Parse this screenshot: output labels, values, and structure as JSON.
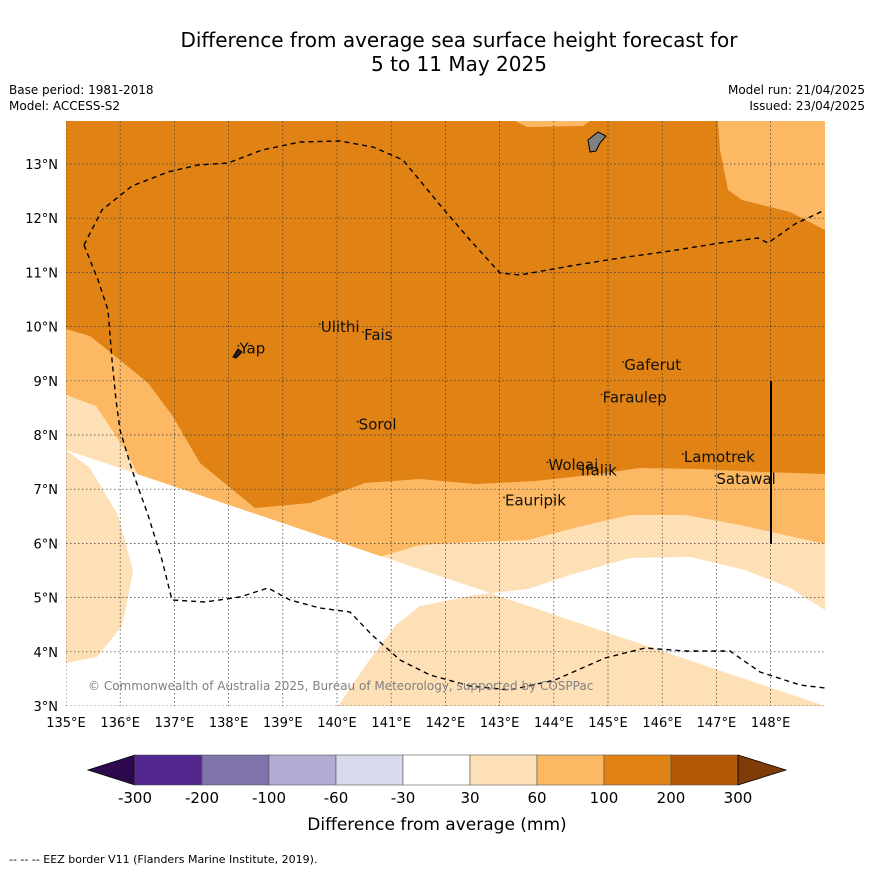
{
  "title_line1": "Difference from average sea surface height forecast for",
  "title_line2": "5 to 11 May 2025",
  "base_period": "Base period: 1981-2018",
  "model": "Model: ACCESS-S2",
  "model_run": "Model run: 21/04/2025",
  "issued": "Issued: 23/04/2025",
  "copyright": "© Commonwealth of Australia 2025, Bureau of Meteorology, supported by COSPPac",
  "footer": "--  --  -- EEZ border V11 (Flanders Marine Institute, 2019).",
  "colorbar": {
    "label": "Difference from average (mm)",
    "ticks": [
      "-300",
      "-200",
      "-100",
      "-60",
      "-30",
      "30",
      "60",
      "100",
      "200",
      "300"
    ],
    "colors": [
      "#2d0a4e",
      "#54278f",
      "#8073ac",
      "#b2abd2",
      "#d8daeb",
      "#ffffff",
      "#fee0b6",
      "#fdb863",
      "#e08214",
      "#b35806",
      "#7f3b08"
    ]
  },
  "axes": {
    "lon_ticks": [
      "135°E",
      "136°E",
      "137°E",
      "138°E",
      "139°E",
      "140°E",
      "141°E",
      "142°E",
      "143°E",
      "144°E",
      "145°E",
      "146°E",
      "147°E",
      "148°E"
    ],
    "lat_ticks": [
      "3°N",
      "4°N",
      "5°N",
      "6°N",
      "7°N",
      "8°N",
      "9°N",
      "10°N",
      "11°N",
      "12°N",
      "13°N"
    ],
    "lon_range": [
      135,
      149
    ],
    "lat_range": [
      3,
      13.8
    ]
  },
  "places": [
    {
      "name": "Ulithi",
      "label": "Ulithi",
      "lon": 139.7,
      "lat": 9.9
    },
    {
      "name": "Fais",
      "label": "Fais",
      "lon": 140.5,
      "lat": 9.75
    },
    {
      "name": "Yap",
      "label": "Yap",
      "lon": 138.2,
      "lat": 9.5
    },
    {
      "name": "Gaferut",
      "label": "Gaferut",
      "lon": 145.3,
      "lat": 9.2
    },
    {
      "name": "Faraulep",
      "label": "Faraulep",
      "lon": 144.9,
      "lat": 8.6
    },
    {
      "name": "Sorol",
      "label": "Sorol",
      "lon": 140.4,
      "lat": 8.1
    },
    {
      "name": "Woleai",
      "label": "Woleai",
      "lon": 143.9,
      "lat": 7.35
    },
    {
      "name": "Ifalik",
      "label": "Ifalik",
      "lon": 144.5,
      "lat": 7.25
    },
    {
      "name": "Lamotrek",
      "label": "Lamotrek",
      "lon": 146.4,
      "lat": 7.5
    },
    {
      "name": "Satawal",
      "label": "Satawal",
      "lon": 147.0,
      "lat": 7.1
    },
    {
      "name": "Eauripik",
      "label": "Eauripik",
      "lon": 143.1,
      "lat": 6.7
    }
  ]
}
